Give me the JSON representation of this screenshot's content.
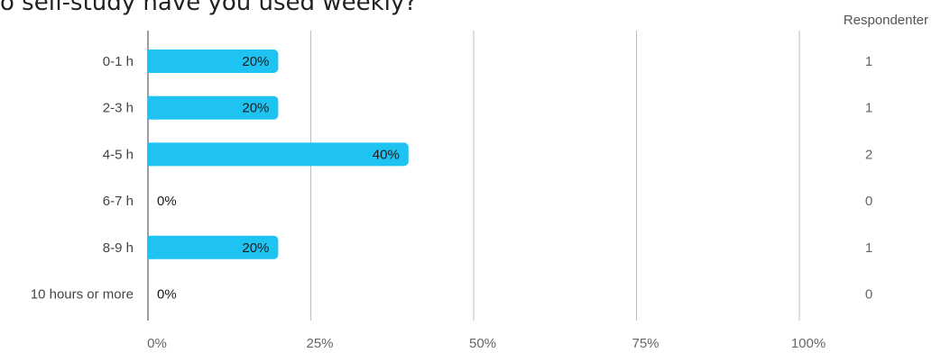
{
  "title": "o self-study have you used weekly?",
  "respondents_header": "Respondenter",
  "colors": {
    "bar": "#1fc3f2",
    "grid": "#bdbdbd",
    "axis": "#9e9e9e",
    "text": "#444444",
    "count_text": "#666666"
  },
  "chart_data": {
    "type": "bar",
    "orientation": "horizontal",
    "title": "o self-study have you used weekly?",
    "categories": [
      "0-1 h",
      "2-3 h",
      "4-5 h",
      "6-7 h",
      "8-9 h",
      "10 hours or more"
    ],
    "values": [
      20,
      20,
      40,
      0,
      20,
      0
    ],
    "value_labels": [
      "20%",
      "20%",
      "40%",
      "0%",
      "20%",
      "0%"
    ],
    "respondents": [
      "1",
      "1",
      "2",
      "0",
      "1",
      "0"
    ],
    "xlim": [
      0,
      100
    ],
    "xticks": [
      0,
      25,
      50,
      75,
      100
    ],
    "xtick_labels": [
      "0%",
      "25%",
      "50%",
      "75%",
      "100%"
    ],
    "grid": true
  }
}
